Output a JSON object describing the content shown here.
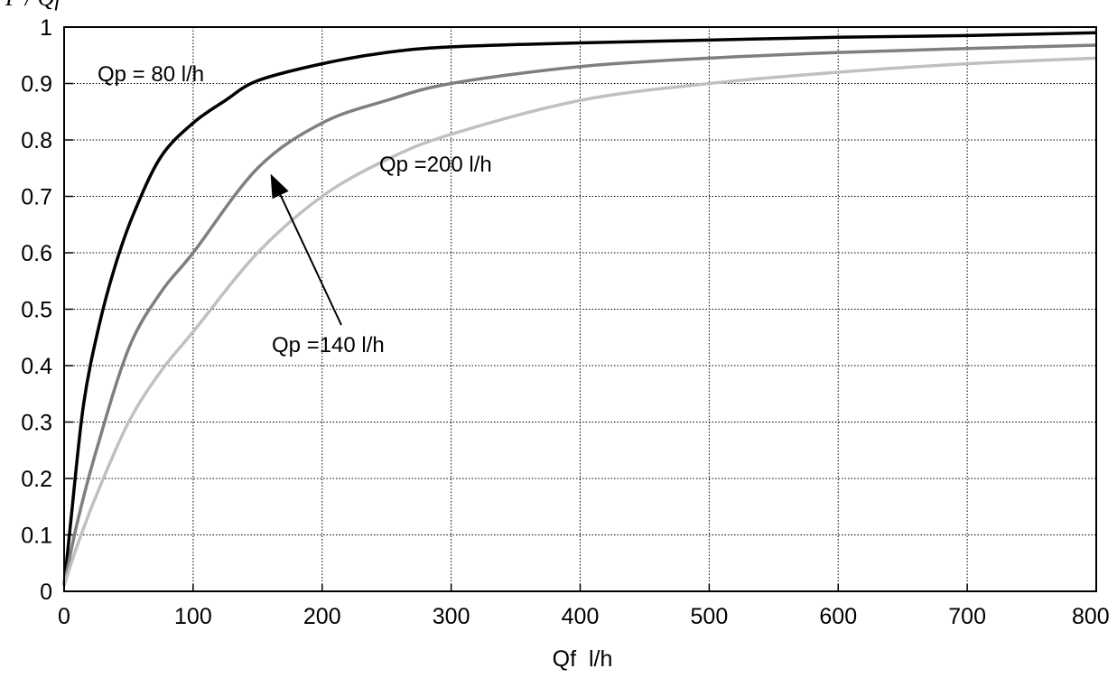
{
  "chart_data": {
    "type": "line",
    "title": "",
    "ylabel": "P / Qf",
    "xlabel": "Qf  l/h",
    "xlim": [
      0,
      800
    ],
    "ylim": [
      0,
      1
    ],
    "grid": true,
    "xticks": [
      "0",
      "100",
      "200",
      "300",
      "400",
      "500",
      "600",
      "700",
      "800"
    ],
    "yticks": [
      "0",
      "0.1",
      "0.2",
      "0.3",
      "0.4",
      "0.5",
      "0.6",
      "0.7",
      "0.8",
      "0.9",
      "1"
    ],
    "series": [
      {
        "name": "Qp = 80 l/h",
        "color": "#000000",
        "x": [
          0,
          5,
          15,
          27,
          40,
          54,
          75,
          100,
          125,
          150,
          200,
          250,
          300,
          400,
          500,
          600,
          700,
          800
        ],
        "y": [
          0.01,
          0.12,
          0.33,
          0.47,
          0.58,
          0.67,
          0.77,
          0.83,
          0.87,
          0.905,
          0.935,
          0.955,
          0.965,
          0.972,
          0.977,
          0.982,
          0.985,
          0.99
        ]
      },
      {
        "name": "Qp =140 l/h",
        "color": "#7f7f7f",
        "x": [
          0,
          10,
          25,
          50,
          75,
          100,
          150,
          200,
          250,
          300,
          400,
          500,
          600,
          700,
          800
        ],
        "y": [
          0.01,
          0.12,
          0.25,
          0.43,
          0.53,
          0.6,
          0.75,
          0.83,
          0.87,
          0.9,
          0.93,
          0.945,
          0.955,
          0.962,
          0.968
        ]
      },
      {
        "name": "Qp =200 l/h",
        "color": "#c0c0c0",
        "x": [
          0,
          10,
          25,
          50,
          75,
          100,
          150,
          200,
          250,
          300,
          400,
          500,
          600,
          700,
          800
        ],
        "y": [
          0.01,
          0.08,
          0.17,
          0.3,
          0.39,
          0.46,
          0.6,
          0.7,
          0.765,
          0.81,
          0.87,
          0.9,
          0.92,
          0.935,
          0.945
        ]
      }
    ],
    "annotations": [
      {
        "text": "Qp = 80 l/h"
      },
      {
        "text": "Qp =200 l/h"
      },
      {
        "text": "Qp =140 l/h",
        "arrow_to": [
          160,
          0.74
        ]
      }
    ]
  }
}
